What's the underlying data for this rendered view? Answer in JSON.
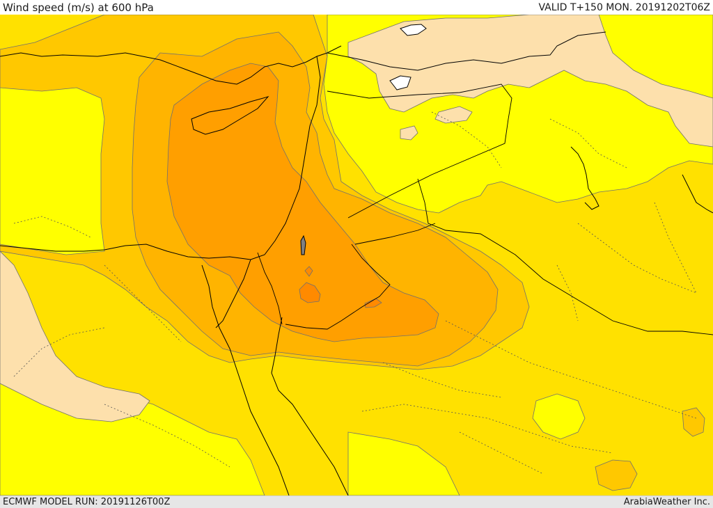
{
  "header": {
    "title": "Wind speed (m/s) at 600 hPa",
    "valid": "VALID T+150 MON. 20191202T06Z"
  },
  "footer": {
    "model_run": "ECMWF MODEL RUN: 20191126T00Z",
    "credit": "ArabiaWeather Inc."
  },
  "colors": {
    "band_pale": "#fde0ac",
    "band_yellow": "#ffff00",
    "band_light_gold": "#ffe100",
    "band_gold": "#ffc800",
    "band_amber": "#ffb400",
    "band_orange": "#ff9f00",
    "band_deep_orange": "#ff8a00",
    "coastline": "#000000",
    "contour": "#707070"
  }
}
